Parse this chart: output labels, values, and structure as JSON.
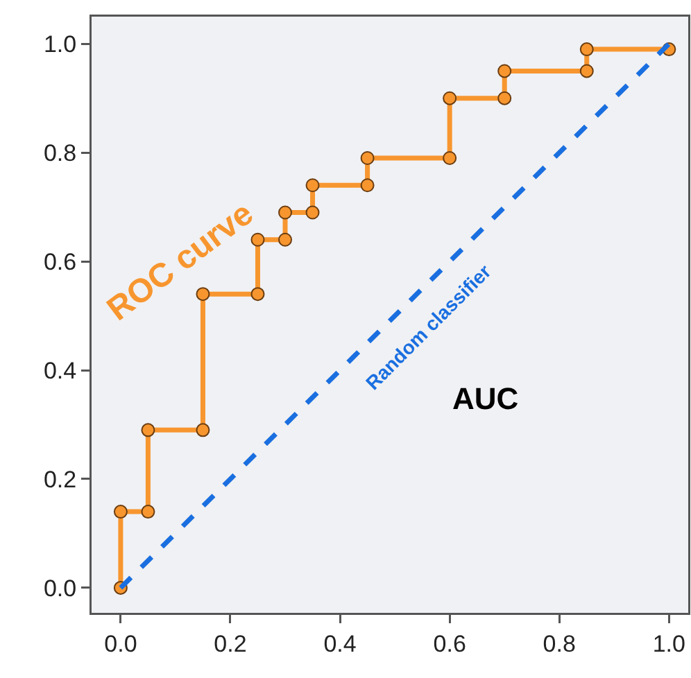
{
  "chart_data": {
    "type": "line",
    "x": [
      0,
      0,
      0.05,
      0.05,
      0.15,
      0.15,
      0.25,
      0.25,
      0.3,
      0.3,
      0.35,
      0.35,
      0.45,
      0.45,
      0.6,
      0.6,
      0.7,
      0.7,
      0.85,
      0.85,
      1
    ],
    "series": [
      {
        "name": "ROC curve",
        "color": "#f7962f",
        "values": [
          0,
          0.14,
          0.14,
          0.29,
          0.29,
          0.54,
          0.54,
          0.64,
          0.64,
          0.69,
          0.69,
          0.74,
          0.74,
          0.79,
          0.79,
          0.9,
          0.9,
          0.95,
          0.95,
          0.99,
          0.99
        ],
        "marker": "circle",
        "line_style": "solid"
      },
      {
        "name": "Random classifier",
        "color": "#1a6fe0",
        "x": [
          0,
          1
        ],
        "values": [
          0,
          1
        ],
        "marker": "none",
        "line_style": "dashed"
      }
    ],
    "annotations": [
      "AUC"
    ],
    "xlim": [
      -0.053,
      1.035
    ],
    "ylim": [
      -0.046,
      1.05
    ],
    "xticks": [
      {
        "value": 0,
        "label": "0.0"
      },
      {
        "value": 0.2,
        "label": "0.2"
      },
      {
        "value": 0.4,
        "label": "0.4"
      },
      {
        "value": 0.6,
        "label": "0.6"
      },
      {
        "value": 0.8,
        "label": "0.8"
      },
      {
        "value": 1,
        "label": "1.0"
      }
    ],
    "yticks": [
      {
        "value": 0,
        "label": "0.0"
      },
      {
        "value": 0.2,
        "label": "0.2"
      },
      {
        "value": 0.4,
        "label": "0.4"
      },
      {
        "value": 0.6,
        "label": "0.6"
      },
      {
        "value": 0.8,
        "label": "0.8"
      },
      {
        "value": 1,
        "label": "1.0"
      }
    ],
    "grid": false,
    "legend": false
  }
}
